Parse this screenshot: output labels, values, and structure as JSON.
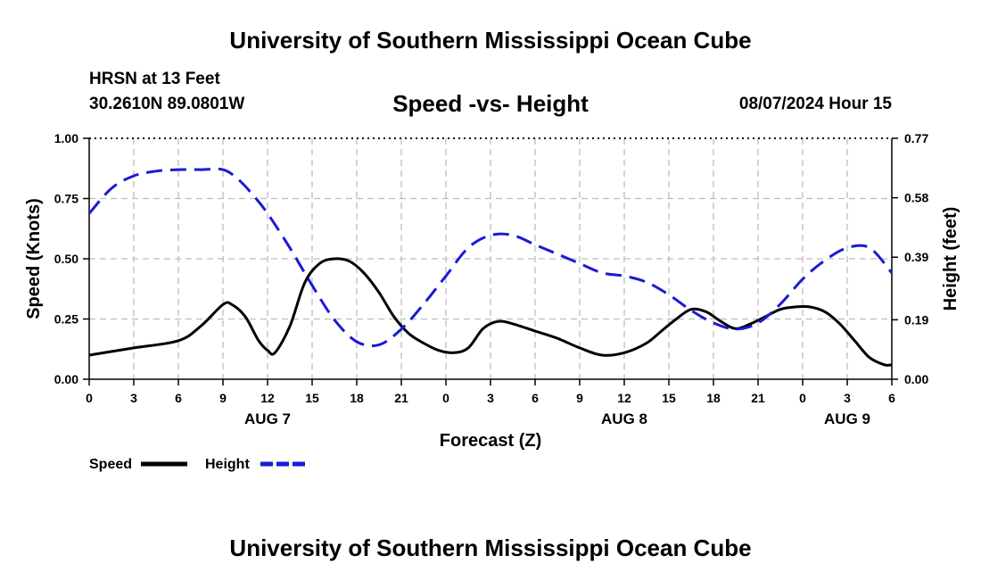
{
  "header": {
    "title": "University of Southern Mississippi Ocean Cube",
    "station_name": "HRSN at 13 Feet",
    "station_coords": "30.2610N  89.0801W",
    "chart_title": "Speed -vs- Height",
    "run_time": "08/07/2024 Hour 15"
  },
  "footer": {
    "title": "University of Southern Mississippi Ocean Cube"
  },
  "chart_data": {
    "type": "line",
    "title": "Speed -vs- Height",
    "xlabel": "Forecast (Z)",
    "ylabel": "Speed (Knots)",
    "y2label": "Height (feet)",
    "x_range": [
      0,
      54
    ],
    "x_tick_values": [
      0,
      3,
      6,
      9,
      12,
      15,
      18,
      21,
      24,
      27,
      30,
      33,
      36,
      39,
      42,
      45,
      48,
      51,
      54
    ],
    "x_tick_labels": [
      "0",
      "3",
      "6",
      "9",
      "12",
      "15",
      "18",
      "21",
      "0",
      "3",
      "6",
      "9",
      "12",
      "15",
      "18",
      "21",
      "0",
      "3",
      "6"
    ],
    "day_labels": [
      {
        "x": 12,
        "label": "AUG 7"
      },
      {
        "x": 36,
        "label": "AUG 8"
      },
      {
        "x": 51,
        "label": "AUG 9"
      }
    ],
    "ylim": [
      0,
      1
    ],
    "y_ticks": [
      0,
      0.25,
      0.5,
      0.75,
      1.0
    ],
    "y_tick_labels": [
      "0.00",
      "0.25",
      "0.50",
      "0.75",
      "1.00"
    ],
    "y2lim": [
      0,
      0.77
    ],
    "y2_ticks": [
      0,
      0.19,
      0.39,
      0.58,
      0.77
    ],
    "y2_tick_labels": [
      "0.00",
      "0.19",
      "0.39",
      "0.58",
      "0.77"
    ],
    "grid": true,
    "series": [
      {
        "name": "Speed",
        "axis": "left",
        "color": "#000000",
        "style": "solid",
        "x": [
          0,
          3,
          6,
          7.5,
          9,
          9.6,
          10.5,
          11.4,
          12,
          12.5,
          13.5,
          14.5,
          15.5,
          16.5,
          17.5,
          18.5,
          19.5,
          20.5,
          21.5,
          22.5,
          23.5,
          24.5,
          25.5,
          26.5,
          27.5,
          28.5,
          30,
          31.5,
          33,
          34.5,
          36,
          37.5,
          38.5,
          39.5,
          40.5,
          41.5,
          42.5,
          43.5,
          44.5,
          45.5,
          46.5,
          47.5,
          48.5,
          49.5,
          50.5,
          51.5,
          52.5,
          53.5,
          54
        ],
        "values": [
          0.1,
          0.13,
          0.16,
          0.22,
          0.31,
          0.31,
          0.26,
          0.16,
          0.12,
          0.11,
          0.22,
          0.4,
          0.48,
          0.5,
          0.49,
          0.44,
          0.36,
          0.26,
          0.19,
          0.15,
          0.12,
          0.11,
          0.13,
          0.21,
          0.24,
          0.23,
          0.2,
          0.17,
          0.13,
          0.1,
          0.11,
          0.15,
          0.2,
          0.25,
          0.29,
          0.28,
          0.24,
          0.21,
          0.23,
          0.26,
          0.29,
          0.3,
          0.3,
          0.28,
          0.23,
          0.16,
          0.09,
          0.06,
          0.06
        ]
      },
      {
        "name": "Height",
        "axis": "right",
        "color": "#1a1ad6",
        "style": "dashed",
        "x": [
          0,
          1.5,
          3,
          4.5,
          6,
          7.5,
          9,
          10,
          11,
          12,
          13.5,
          15,
          16.5,
          18,
          19.5,
          21,
          22.5,
          24,
          25.5,
          27,
          28.5,
          30,
          31.5,
          33,
          34.5,
          36,
          37.5,
          39,
          40.5,
          42,
          43.5,
          45,
          46.5,
          48,
          49.5,
          51,
          52.5,
          54
        ],
        "values": [
          0.53,
          0.61,
          0.65,
          0.665,
          0.67,
          0.67,
          0.67,
          0.64,
          0.59,
          0.53,
          0.42,
          0.3,
          0.19,
          0.12,
          0.11,
          0.16,
          0.24,
          0.33,
          0.42,
          0.46,
          0.46,
          0.43,
          0.4,
          0.37,
          0.34,
          0.33,
          0.31,
          0.27,
          0.22,
          0.18,
          0.16,
          0.18,
          0.24,
          0.32,
          0.38,
          0.42,
          0.42,
          0.34
        ]
      }
    ],
    "legend": {
      "placement": "bottom-left",
      "entries": [
        {
          "label": "Speed",
          "color": "#000000",
          "style": "solid"
        },
        {
          "label": "Height",
          "color": "#1a1ad6",
          "style": "dashed"
        }
      ]
    }
  }
}
